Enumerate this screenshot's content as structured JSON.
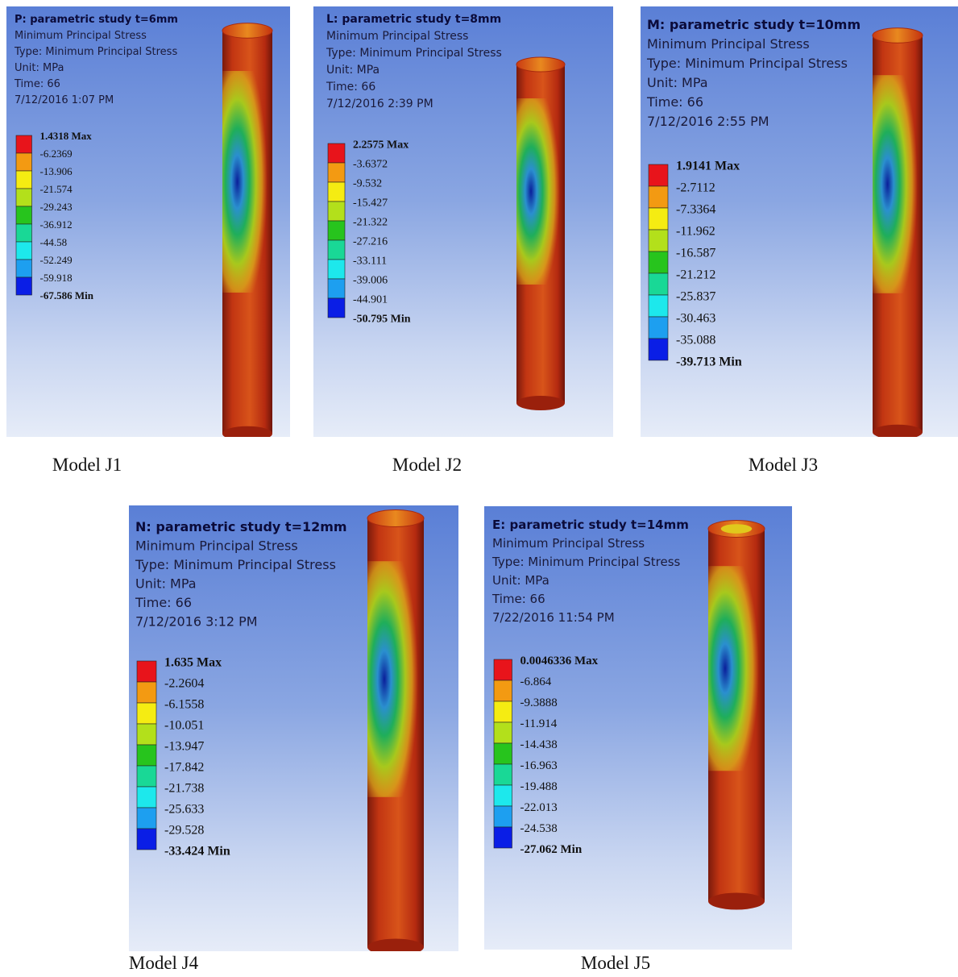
{
  "panels": [
    {
      "title": "P: parametric study t=6mm",
      "lines": [
        "Minimum Principal Stress",
        "Type: Minimum Principal Stress",
        "Unit: MPa",
        "Time: 66",
        "7/12/2016 1:07 PM"
      ],
      "legend": [
        "1.4318 Max",
        "-6.2369",
        "-13.906",
        "-21.574",
        "-29.243",
        "-36.912",
        "-44.58",
        "-52.249",
        "-59.918",
        "-67.586 Min"
      ],
      "caption": "Model J1"
    },
    {
      "title": "L: parametric study t=8mm",
      "lines": [
        "Minimum Principal Stress",
        "Type: Minimum Principal Stress",
        "Unit: MPa",
        "Time: 66",
        "7/12/2016 2:39 PM"
      ],
      "legend": [
        "2.2575 Max",
        "-3.6372",
        "-9.532",
        "-15.427",
        "-21.322",
        "-27.216",
        "-33.111",
        "-39.006",
        "-44.901",
        "-50.795 Min"
      ],
      "caption": "Model J2"
    },
    {
      "title": "M: parametric study t=10mm",
      "lines": [
        "Minimum Principal Stress",
        "Type: Minimum Principal Stress",
        "Unit: MPa",
        "Time: 66",
        "7/12/2016 2:55 PM"
      ],
      "legend": [
        "1.9141 Max",
        "-2.7112",
        "-7.3364",
        "-11.962",
        "-16.587",
        "-21.212",
        "-25.837",
        "-30.463",
        "-35.088",
        "-39.713 Min"
      ],
      "caption": "Model J3"
    },
    {
      "title": "N: parametric study t=12mm",
      "lines": [
        "Minimum Principal Stress",
        "Type: Minimum Principal Stress",
        "Unit: MPa",
        "Time: 66",
        "7/12/2016 3:12 PM"
      ],
      "legend": [
        "1.635 Max",
        "-2.2604",
        "-6.1558",
        "-10.051",
        "-13.947",
        "-17.842",
        "-21.738",
        "-25.633",
        "-29.528",
        "-33.424 Min"
      ],
      "caption": "Model J4"
    },
    {
      "title": "E: parametric study t=14mm",
      "lines": [
        "Minimum Principal Stress",
        "Type: Minimum Principal Stress",
        "Unit: MPa",
        "Time: 66",
        "7/22/2016 11:54 PM"
      ],
      "legend": [
        "0.0046336 Max",
        "-6.864",
        "-9.3888",
        "-11.914",
        "-14.438",
        "-16.963",
        "-19.488",
        "-22.013",
        "-24.538",
        "-27.062 Min"
      ],
      "caption": "Model J5"
    }
  ]
}
